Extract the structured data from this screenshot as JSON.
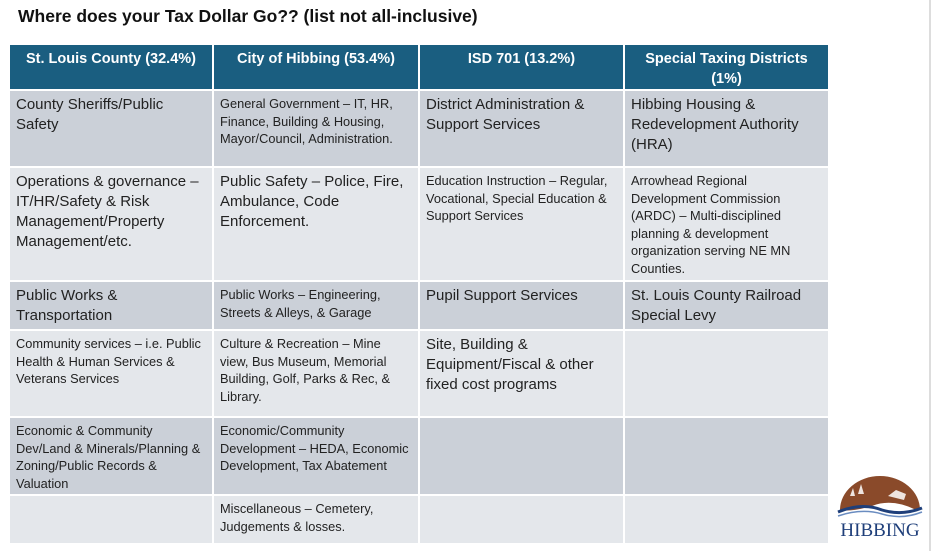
{
  "title": "Where does your Tax Dollar Go?? (list not all-inclusive)",
  "headers": [
    "St. Louis County (32.4%)",
    "City of Hibbing (53.4%)",
    "ISD 701 (13.2%)",
    "Special Taxing Districts (1%)"
  ],
  "rows": [
    [
      "County Sheriffs/Public Safety",
      "General Government – IT, HR, Finance, Building & Housing, Mayor/Council, Administration.",
      "District Administration & Support Services",
      "Hibbing Housing & Redevelopment Authority (HRA)"
    ],
    [
      "Operations & governance – IT/HR/Safety & Risk Management/Property Management/etc.",
      "Public Safety – Police, Fire, Ambulance, Code Enforcement.",
      "Education Instruction – Regular, Vocational, Special Education & Support Services",
      "Arrowhead Regional Development Commission (ARDC) – Multi-disciplined planning & development organization serving NE MN Counties."
    ],
    [
      "Public Works & Transportation",
      "Public Works – Engineering, Streets & Alleys, & Garage",
      "Pupil Support Services",
      "St. Louis County Railroad Special Levy"
    ],
    [
      "Community services – i.e. Public Health & Human Services & Veterans Services",
      "Culture & Recreation –  Mine view, Bus Museum, Memorial Building, Golf, Parks & Rec, & Library.",
      "Site, Building & Equipment/Fiscal & other fixed cost programs",
      ""
    ],
    [
      "Economic & Community Dev/Land & Minerals/Planning & Zoning/Public Records & Valuation",
      "Economic/Community Development – HEDA, Economic Development, Tax Abatement",
      "",
      ""
    ],
    [
      "",
      "Miscellaneous – Cemetery, Judgements & losses.",
      "",
      ""
    ]
  ],
  "logo": {
    "text": "HIBBING",
    "colors": {
      "brown": "#8a4a2a",
      "blue": "#1f3f7a"
    }
  },
  "colors": {
    "header": "#1a5e80",
    "row_dark": "#cbd0d8",
    "row_light": "#e4e7eb"
  }
}
